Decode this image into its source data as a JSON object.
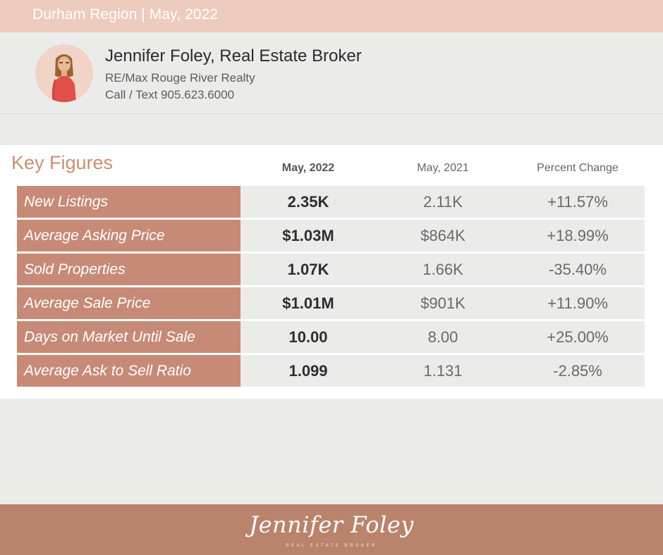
{
  "header": {
    "title": "Durham Region | May, 2022",
    "background": "#edcbbd"
  },
  "agent": {
    "name": "Jennifer Foley, Real Estate Broker",
    "company": "RE/Max Rouge River Realty",
    "phone": "Call / Text 905.623.6000",
    "avatar_icon": "agent-portrait-icon"
  },
  "key_figures": {
    "title": "Key Figures",
    "columns": [
      "May, 2022",
      "May, 2021",
      "Percent Change"
    ],
    "rows": [
      {
        "label": "New Listings",
        "current": "2.35K",
        "previous": "2.11K",
        "change": "+11.57%"
      },
      {
        "label": "Average Asking Price",
        "current": "$1.03M",
        "previous": "$864K",
        "change": "+18.99%"
      },
      {
        "label": "Sold Properties",
        "current": "1.07K",
        "previous": "1.66K",
        "change": "-35.40%"
      },
      {
        "label": "Average Sale Price",
        "current": "$1.01M",
        "previous": "$901K",
        "change": "+11.90%"
      },
      {
        "label": "Days on Market Until Sale",
        "current": "10.00",
        "previous": "8.00",
        "change": "+25.00%"
      },
      {
        "label": "Average Ask to Sell Ratio",
        "current": "1.099",
        "previous": "1.131",
        "change": "-2.85%"
      }
    ],
    "label_color": "#c68a77",
    "title_color": "#c98e74"
  },
  "footer": {
    "signature": "Jennifer Foley",
    "tagline": "REAL ESTATE BROKER",
    "background": "#b9836c"
  }
}
